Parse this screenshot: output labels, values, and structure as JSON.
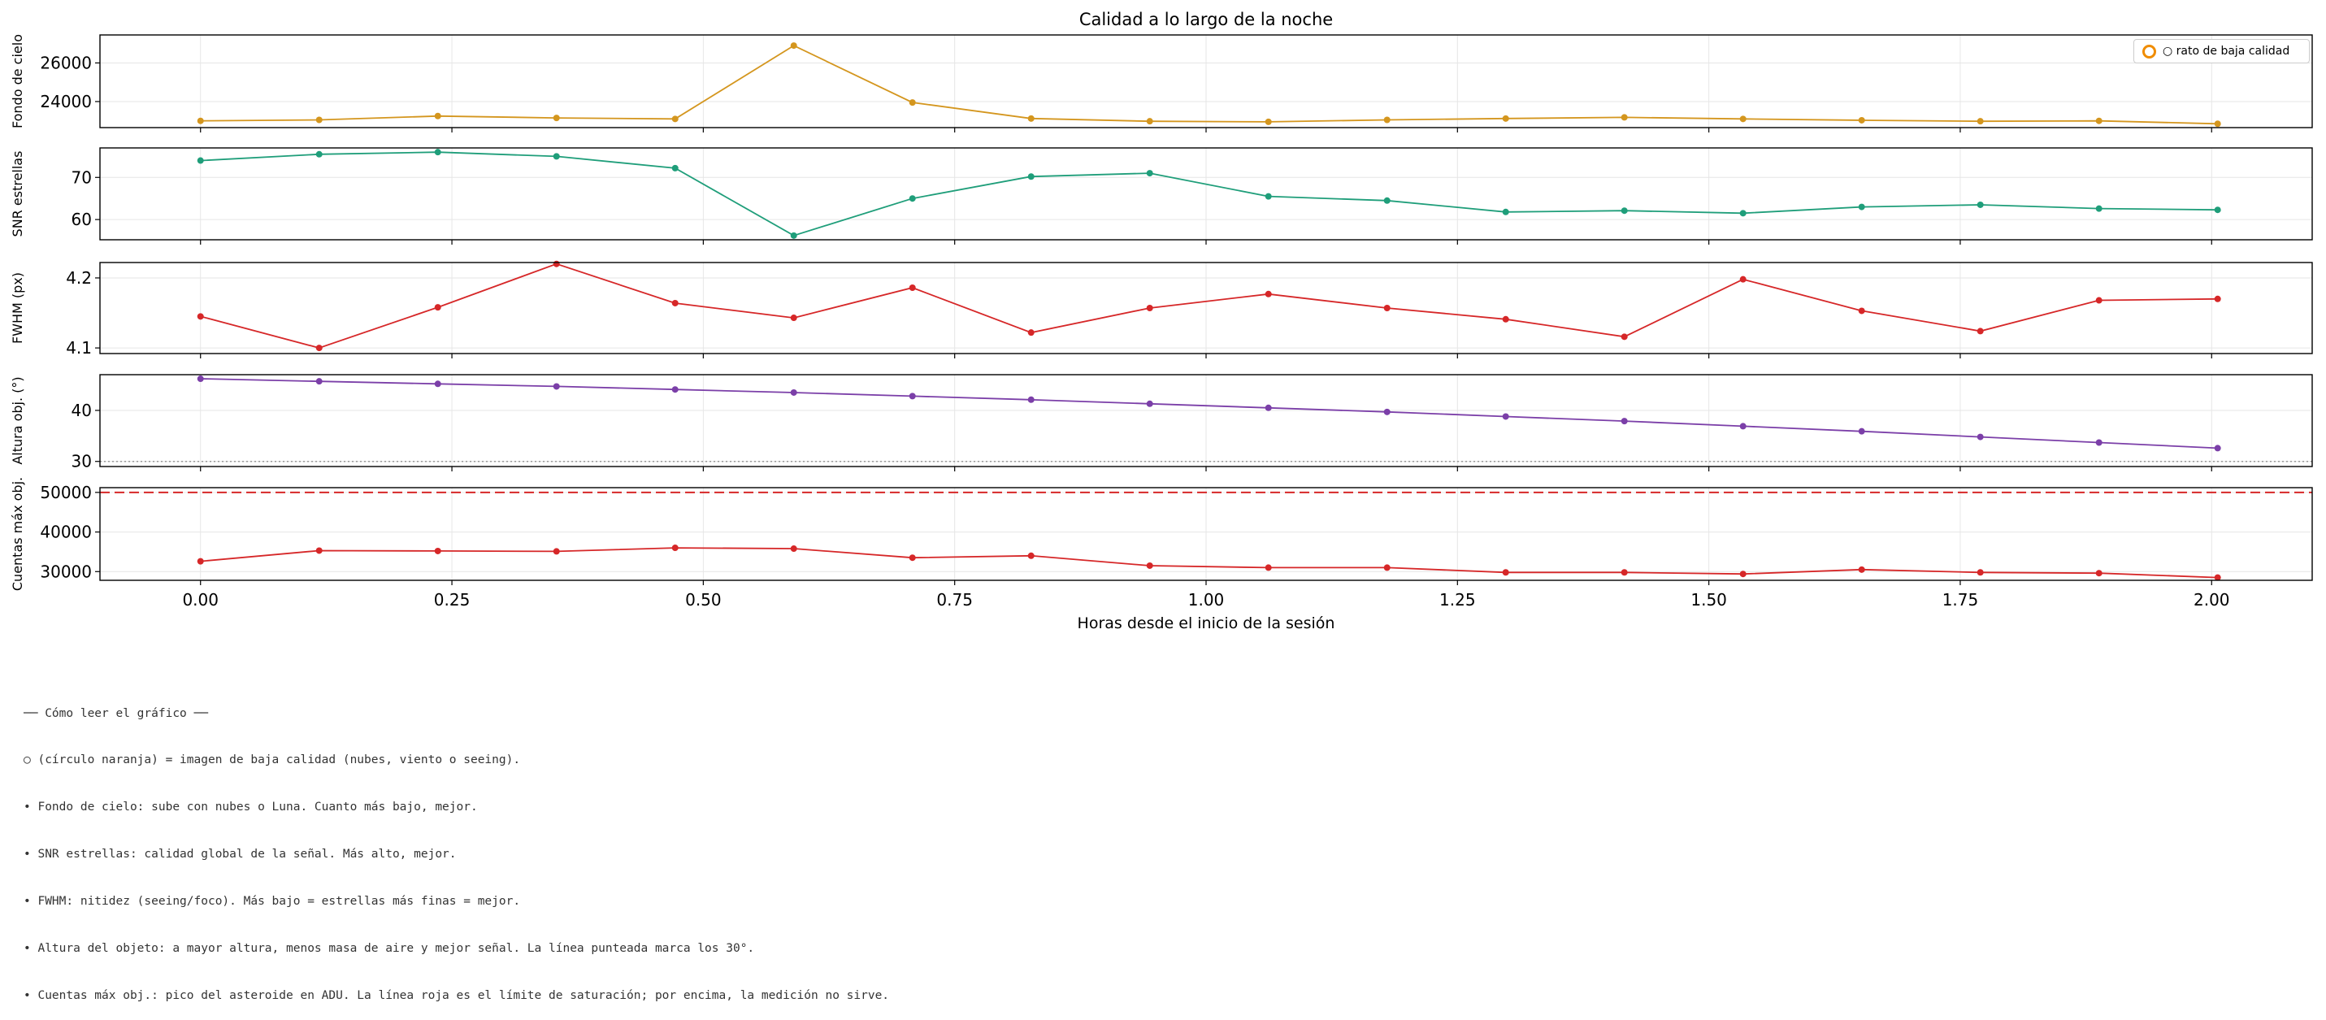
{
  "chart_data": {
    "type": "line",
    "title": "Calidad a lo largo de la noche",
    "xlabel": "Horas desde el inicio de la sesión",
    "xlim": [
      -0.1,
      2.1
    ],
    "x_ticks": [
      0.0,
      0.25,
      0.5,
      0.75,
      1.0,
      1.25,
      1.5,
      1.75,
      2.0
    ],
    "x_tick_labels": [
      "0.00",
      "0.25",
      "0.50",
      "0.75",
      "1.00",
      "1.25",
      "1.50",
      "1.75",
      "2.00"
    ],
    "x": [
      0.0,
      0.118,
      0.236,
      0.354,
      0.472,
      0.59,
      0.708,
      0.826,
      0.944,
      1.062,
      1.18,
      1.298,
      1.416,
      1.534,
      1.652,
      1.77,
      1.888,
      2.006
    ],
    "grid": true,
    "legend": {
      "placement": "top-right",
      "label": "○ rato de baja calidad",
      "marker_color": "#f08c00"
    },
    "panels": [
      {
        "ylabel": "Fondo de cielo",
        "color": "#d4961e",
        "ylim": [
          22650,
          27450
        ],
        "y_ticks": [
          24000,
          26000
        ],
        "y_tick_labels": [
          "24000",
          "26000"
        ],
        "values": [
          23000,
          23050,
          23250,
          23150,
          23100,
          26900,
          23950,
          23120,
          22980,
          22950,
          23050,
          23120,
          23180,
          23100,
          23030,
          22980,
          23000,
          22850
        ]
      },
      {
        "ylabel": "SNR estrellas",
        "color": "#1f9e7a",
        "ylim": [
          55.2,
          77.0
        ],
        "y_ticks": [
          60,
          70
        ],
        "y_tick_labels": [
          "60",
          "70"
        ],
        "values": [
          74.0,
          75.5,
          76.0,
          75.0,
          72.2,
          56.2,
          65.0,
          70.2,
          71.0,
          65.5,
          64.5,
          61.8,
          62.1,
          61.5,
          63.0,
          63.5,
          62.6,
          62.3
        ]
      },
      {
        "ylabel": "FWHM (px)",
        "color": "#d62728",
        "ylim": [
          4.092,
          4.222
        ],
        "y_ticks": [
          4.1,
          4.2
        ],
        "y_tick_labels": [
          "4.1",
          "4.2"
        ],
        "values": [
          4.145,
          4.1,
          4.158,
          4.22,
          4.164,
          4.143,
          4.186,
          4.122,
          4.157,
          4.177,
          4.157,
          4.141,
          4.116,
          4.198,
          4.153,
          4.124,
          4.168,
          4.17
        ]
      },
      {
        "ylabel": "Altura obj. (°)",
        "color": "#7b3fa8",
        "ylim": [
          29.0,
          47.0
        ],
        "y_ticks": [
          30,
          40
        ],
        "y_tick_labels": [
          "30",
          "40"
        ],
        "reference_line": {
          "y": 30,
          "style": "dotted",
          "color": "#999999"
        },
        "values": [
          46.2,
          45.7,
          45.2,
          44.7,
          44.1,
          43.5,
          42.8,
          42.1,
          41.3,
          40.5,
          39.7,
          38.8,
          37.9,
          36.9,
          35.9,
          34.8,
          33.7,
          32.6
        ]
      },
      {
        "ylabel": "Cuentas máx obj.",
        "color": "#d62728",
        "ylim": [
          27800,
          51200
        ],
        "y_ticks": [
          30000,
          40000,
          50000
        ],
        "y_tick_labels": [
          "30000",
          "40000",
          "50000"
        ],
        "reference_line": {
          "y": 50000,
          "style": "dashed",
          "color": "#d62728"
        },
        "values": [
          32600,
          35300,
          35200,
          35100,
          36000,
          35800,
          33500,
          34000,
          31500,
          31000,
          31000,
          29800,
          29800,
          29400,
          30500,
          29800,
          29600,
          28500
        ]
      }
    ]
  },
  "notes": [
    "── Cómo leer el gráfico ──",
    "○ (círculo naranja) = imagen de baja calidad (nubes, viento o seeing).",
    "• Fondo de cielo: sube con nubes o Luna. Cuanto más bajo, mejor.",
    "• SNR estrellas: calidad global de la señal. Más alto, mejor.",
    "• FWHM: nitidez (seeing/foco). Más bajo = estrellas más finas = mejor.",
    "• Altura del objeto: a mayor altura, menos masa de aire y mejor señal. La línea punteada marca los 30°.",
    "• Cuentas máx obj.: pico del asteroide en ADU. La línea roja es el límite de saturación; por encima, la medición no sirve."
  ]
}
